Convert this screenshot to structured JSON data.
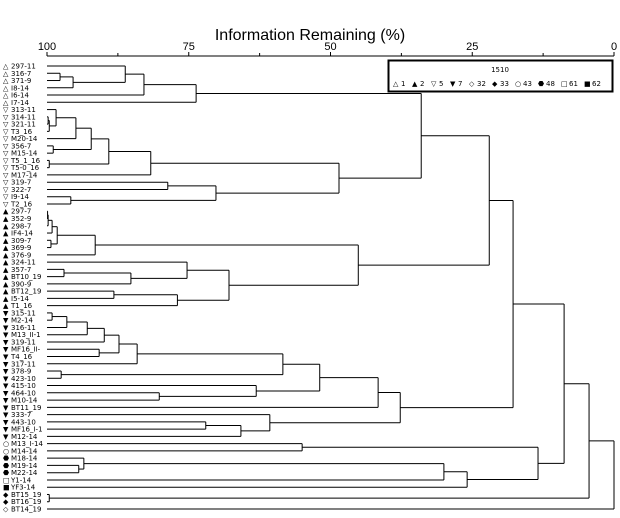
{
  "chart_data": {
    "type": "dendrogram",
    "title": "Information Remaining (%)",
    "xlim": [
      100,
      0
    ],
    "ticks": [
      100,
      75,
      50,
      25,
      0
    ],
    "minor_ticks": [
      87.5,
      62.5,
      37.5,
      12.5
    ],
    "legend": {
      "title": "1510",
      "placement": "top-right",
      "entries": [
        {
          "code": "1",
          "symbol": "open-triangle-up"
        },
        {
          "code": "2",
          "symbol": "filled-triangle-up"
        },
        {
          "code": "5",
          "symbol": "open-triangle-down"
        },
        {
          "code": "7",
          "symbol": "filled-triangle-down"
        },
        {
          "code": "32",
          "symbol": "open-diamond"
        },
        {
          "code": "33",
          "symbol": "filled-diamond"
        },
        {
          "code": "43",
          "symbol": "open-octagon"
        },
        {
          "code": "48",
          "symbol": "filled-octagon"
        },
        {
          "code": "61",
          "symbol": "open-square"
        },
        {
          "code": "62",
          "symbol": "filled-square"
        }
      ]
    },
    "leaves": [
      {
        "label": "297-11",
        "group": "1"
      },
      {
        "label": "316-7",
        "group": "1"
      },
      {
        "label": "371-9",
        "group": "1"
      },
      {
        "label": "I8-14",
        "group": "1"
      },
      {
        "label": "I6-14",
        "group": "1"
      },
      {
        "label": "I7-14",
        "group": "1"
      },
      {
        "label": "313-11",
        "group": "5"
      },
      {
        "label": "314-11",
        "group": "5"
      },
      {
        "label": "321-11",
        "group": "5"
      },
      {
        "label": "T3_16",
        "group": "5"
      },
      {
        "label": "M20-14",
        "group": "5"
      },
      {
        "label": "356-7",
        "group": "5"
      },
      {
        "label": "M15-14",
        "group": "5"
      },
      {
        "label": "T5_1_16",
        "group": "5"
      },
      {
        "label": "T5-0_16",
        "group": "5"
      },
      {
        "label": "M17-14",
        "group": "5"
      },
      {
        "label": "319-7",
        "group": "5"
      },
      {
        "label": "322-7",
        "group": "5"
      },
      {
        "label": "I9-14",
        "group": "5"
      },
      {
        "label": "T2_16",
        "group": "5"
      },
      {
        "label": "297-7",
        "group": "2"
      },
      {
        "label": "352-9",
        "group": "2"
      },
      {
        "label": "298-7",
        "group": "2"
      },
      {
        "label": "IF4-14",
        "group": "2"
      },
      {
        "label": "309-7",
        "group": "2"
      },
      {
        "label": "369-9",
        "group": "2"
      },
      {
        "label": "376-9",
        "group": "2"
      },
      {
        "label": "324-11",
        "group": "2"
      },
      {
        "label": "357-7",
        "group": "2"
      },
      {
        "label": "BT10_19",
        "group": "2"
      },
      {
        "label": "390-9",
        "group": "2"
      },
      {
        "label": "BT12_19",
        "group": "2"
      },
      {
        "label": "I5-14",
        "group": "2"
      },
      {
        "label": "T1_16",
        "group": "2"
      },
      {
        "label": "315-11",
        "group": "7"
      },
      {
        "label": "M2-14",
        "group": "7"
      },
      {
        "label": "316-11",
        "group": "7"
      },
      {
        "label": "M13_II-1",
        "group": "7"
      },
      {
        "label": "319-11",
        "group": "7"
      },
      {
        "label": "MF16_II-",
        "group": "7"
      },
      {
        "label": "T4_16",
        "group": "7"
      },
      {
        "label": "317-11",
        "group": "7"
      },
      {
        "label": "378-9",
        "group": "7"
      },
      {
        "label": "423-10",
        "group": "7"
      },
      {
        "label": "415-10",
        "group": "7"
      },
      {
        "label": "464-10",
        "group": "7"
      },
      {
        "label": "M10-14",
        "group": "7"
      },
      {
        "label": "BT11_19",
        "group": "7"
      },
      {
        "label": "333-7",
        "group": "7"
      },
      {
        "label": "443-10",
        "group": "7"
      },
      {
        "label": "MF16_I-1",
        "group": "7"
      },
      {
        "label": "M12-14",
        "group": "7"
      },
      {
        "label": "M13_I-14",
        "group": "43"
      },
      {
        "label": "M14-14",
        "group": "43"
      },
      {
        "label": "M18-14",
        "group": "48"
      },
      {
        "label": "M19-14",
        "group": "48"
      },
      {
        "label": "M22-14",
        "group": "48"
      },
      {
        "label": "Y1-14",
        "group": "61"
      },
      {
        "label": "YF3-14",
        "group": "62"
      },
      {
        "label": "BT15_19",
        "group": "33"
      },
      {
        "label": "BT16_19",
        "group": "33"
      },
      {
        "label": "BT14_19",
        "group": "32"
      }
    ],
    "tree": [
      [
        [
          [
            [
              [
                [
                  [
                    [
                      [
                        [
                          1,
                          2,
                          97.7
                        ],
                        3,
                        95.4
                      ],
                      0,
                      86.2
                    ],
                    4,
                    82.9
                  ],
                  5,
                  73.7
                ],
                [
                  [
                    [
                      [
                        [
                          [
                            [
                              [
                                7,
                                8,
                                99.8
                              ],
                              9,
                              99.6
                            ],
                            6,
                            98.4
                          ],
                          10,
                          94.9
                        ],
                        [
                          11,
                          12,
                          98.9
                        ],
                        92.2
                      ],
                      [
                        13,
                        14,
                        99.6
                      ],
                      89.1
                    ],
                    15,
                    81.7
                  ],
                  [
                    [
                      16,
                      17,
                      78.7
                    ],
                    [
                      18,
                      19,
                      95.8
                    ],
                    70.2
                  ],
                  48.5
                ],
                34.0
              ],
              [
                [
                  [
                    [
                      [
                        [
                          20,
                          21,
                          99.9
                        ],
                        22,
                        99.8
                      ],
                      23,
                      99.1
                    ],
                    [
                      24,
                      25,
                      99.3
                    ],
                    98.2
                  ],
                  26,
                  91.5
                ],
                [
                  [
                    27,
                    [
                      [
                        28,
                        29,
                        97.0
                      ],
                      30,
                      85.2
                    ],
                    75.3
                  ],
                  [
                    [
                      31,
                      32,
                      88.2
                    ],
                    33,
                    77.0
                  ],
                  67.9
                ],
                45.1
              ],
              22.0
            ],
            [
              [
                [
                  [
                    [
                      [
                        [
                          [
                            [
                              [
                                34,
                                35,
                                99.1
                              ],
                              36,
                              96.5
                            ],
                            37,
                            92.9
                          ],
                          38,
                          89.9
                        ],
                        [
                          39,
                          40,
                          90.8
                        ],
                        87.3
                      ],
                      41,
                      84.1
                    ],
                    [
                      42,
                      43,
                      97.5
                    ],
                    58.4
                  ],
                  [
                    44,
                    [
                      45,
                      46,
                      80.2
                    ],
                    63.1
                  ],
                  51.9
                ],
                47,
                41.6
              ],
              [
                48,
                [
                  [
                    49,
                    50,
                    72.0
                  ],
                  51,
                  65.8
                ],
                60.7
              ],
              37.7
            ],
            17.8
          ],
          [
            [
              52,
              53,
              55.0
            ],
            [
              [
                [
                  54,
                  [
                    55,
                    56,
                    94.4
                  ],
                  93.5
                ],
                57,
                30.0
              ],
              58,
              25.9
            ],
            13.4
          ],
          8.8
        ],
        [
          59,
          60,
          99.6
        ],
        4.4
      ],
      61,
      0
    ]
  }
}
